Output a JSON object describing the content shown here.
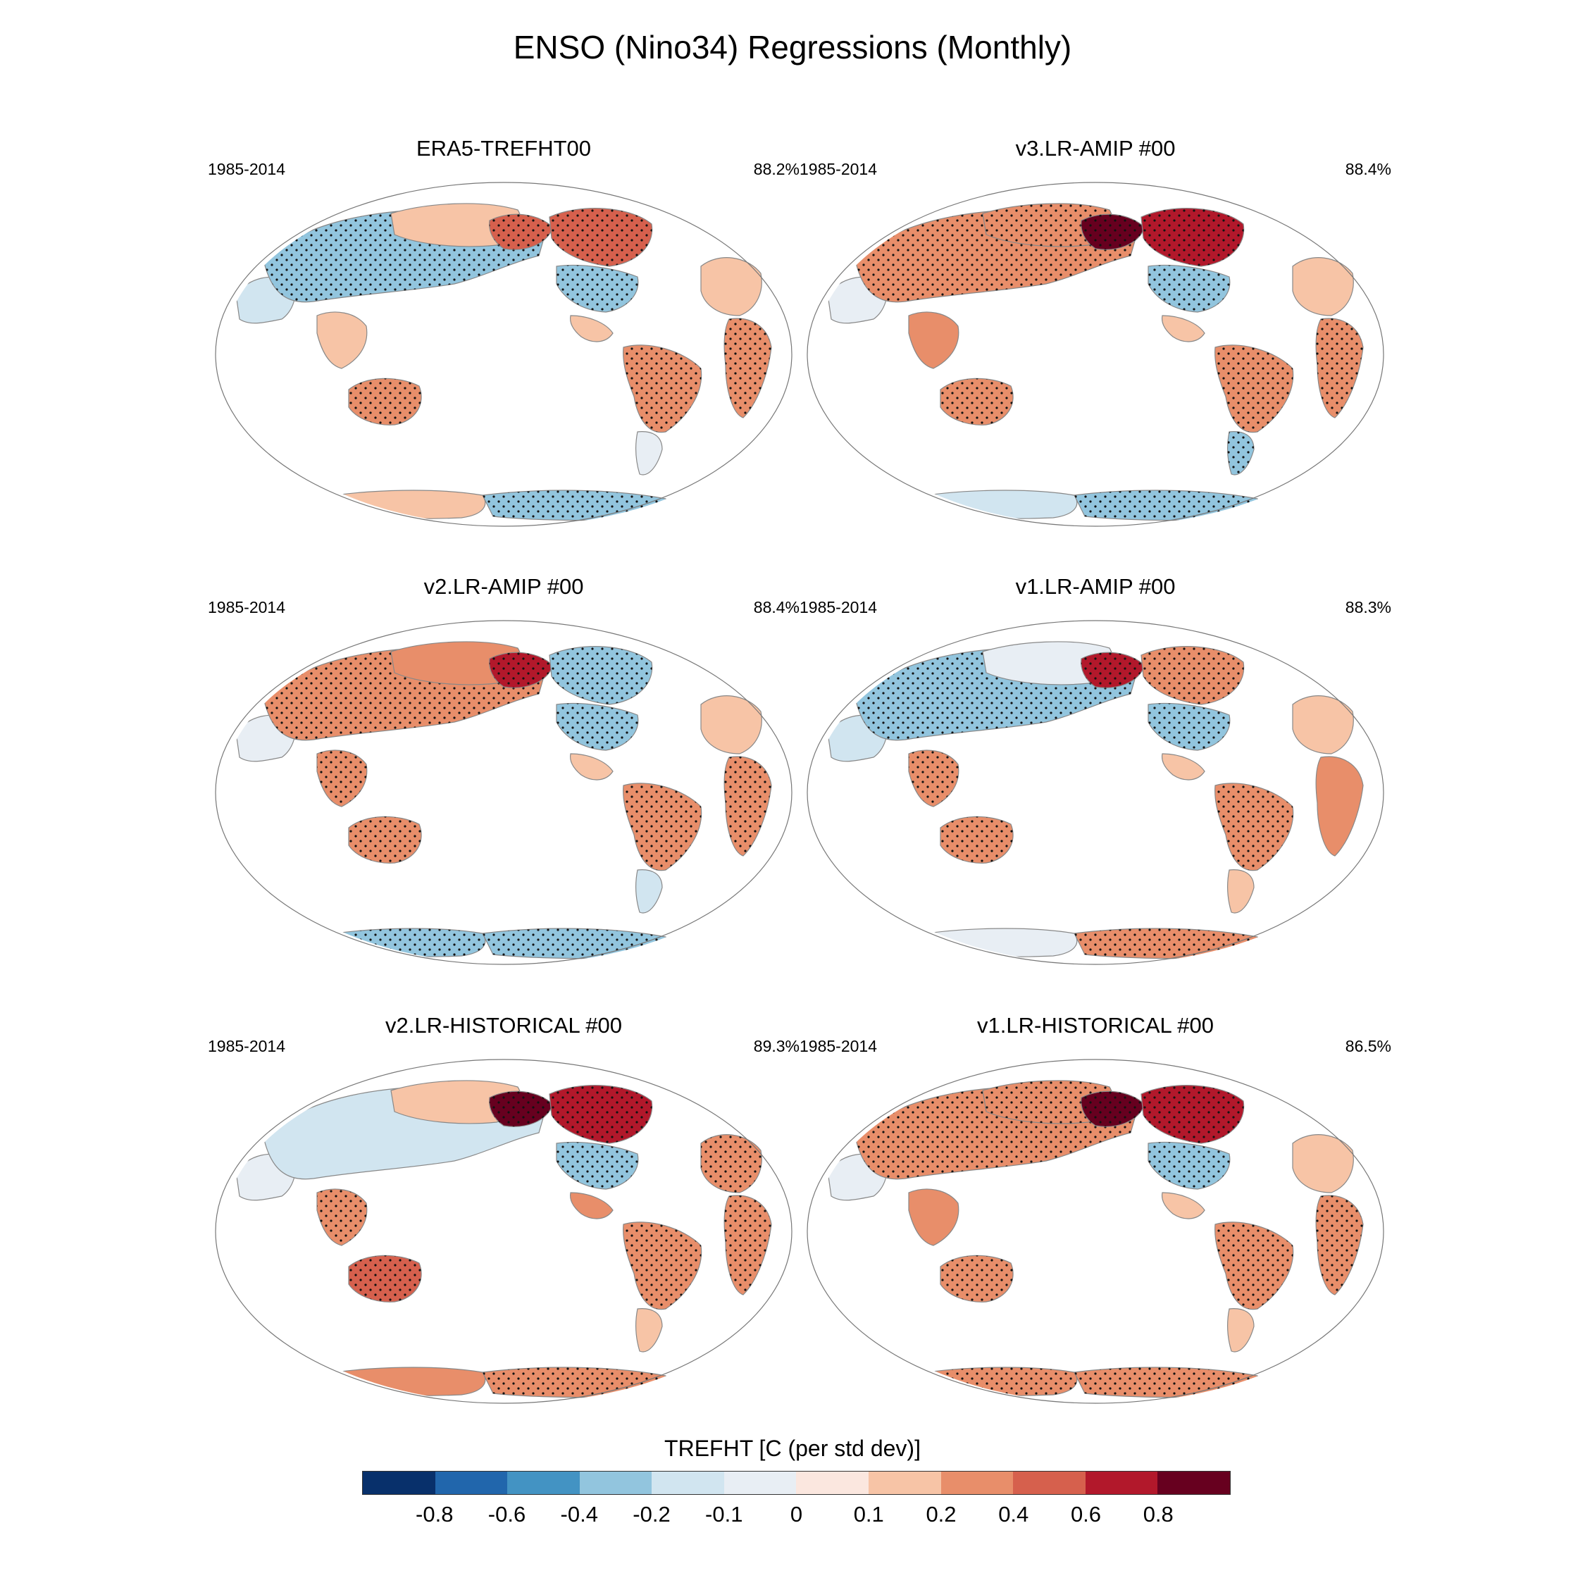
{
  "title": "ENSO (Nino34) Regressions (Monthly)",
  "panels": [
    {
      "title": "ERA5-TREFHT00",
      "period": "1985-2014",
      "pct": "88.2%",
      "anomalies": {
        "eurasia_n": -0.3,
        "europe": -0.2,
        "siberia_e": 0.1,
        "alaska": 0.5,
        "canada": 0.4,
        "usa": -0.4,
        "mexico": 0.1,
        "south_america": 0.3,
        "patagonia": -0.1,
        "africa_n": 0.1,
        "africa_s": 0.3,
        "australia": 0.3,
        "se_asia": 0.1,
        "antarctica_w": 0.1,
        "antarctica_e": -0.4
      }
    },
    {
      "title": "v3.LR-AMIP  #00",
      "period": "1985-2014",
      "pct": "88.4%",
      "anomalies": {
        "eurasia_n": 0.3,
        "europe": -0.1,
        "siberia_e": 0.3,
        "alaska": 0.8,
        "canada": 0.6,
        "usa": -0.3,
        "mexico": 0.1,
        "south_america": 0.3,
        "patagonia": -0.3,
        "africa_n": 0.1,
        "africa_s": 0.3,
        "australia": 0.3,
        "se_asia": 0.2,
        "antarctica_w": -0.2,
        "antarctica_e": -0.4
      }
    },
    {
      "title": "v2.LR-AMIP  #00",
      "period": "1985-2014",
      "pct": "88.4%",
      "anomalies": {
        "eurasia_n": 0.3,
        "europe": -0.1,
        "siberia_e": 0.2,
        "alaska": 0.6,
        "canada": -0.3,
        "usa": -0.4,
        "mexico": 0.1,
        "south_america": 0.3,
        "patagonia": -0.2,
        "africa_n": 0.1,
        "africa_s": 0.3,
        "australia": 0.3,
        "se_asia": 0.3,
        "antarctica_w": -0.4,
        "antarctica_e": -0.3
      }
    },
    {
      "title": "v1.LR-AMIP  #00",
      "period": "1985-2014",
      "pct": "88.3%",
      "anomalies": {
        "eurasia_n": -0.3,
        "europe": -0.2,
        "siberia_e": -0.1,
        "alaska": 0.6,
        "canada": 0.3,
        "usa": -0.4,
        "mexico": 0.1,
        "south_america": 0.3,
        "patagonia": 0.1,
        "africa_n": 0.1,
        "africa_s": 0.2,
        "australia": 0.3,
        "se_asia": 0.3,
        "antarctica_w": -0.1,
        "antarctica_e": 0.3
      }
    },
    {
      "title": "v2.LR-HISTORICAL  #00",
      "period": "1985-2014",
      "pct": "89.3%",
      "anomalies": {
        "eurasia_n": -0.2,
        "europe": -0.1,
        "siberia_e": 0.1,
        "alaska": 0.8,
        "canada": 0.6,
        "usa": -0.4,
        "mexico": 0.2,
        "south_america": 0.3,
        "patagonia": 0.1,
        "africa_n": 0.3,
        "africa_s": 0.3,
        "australia": 0.4,
        "se_asia": 0.3,
        "antarctica_w": 0.2,
        "antarctica_e": 0.3
      }
    },
    {
      "title": "v1.LR-HISTORICAL  #00",
      "period": "1985-2014",
      "pct": "86.5%",
      "anomalies": {
        "eurasia_n": 0.3,
        "europe": -0.1,
        "siberia_e": 0.3,
        "alaska": 0.8,
        "canada": 0.6,
        "usa": -0.3,
        "mexico": 0.1,
        "south_america": 0.3,
        "patagonia": 0.1,
        "africa_n": 0.1,
        "africa_s": 0.3,
        "australia": 0.3,
        "se_asia": 0.2,
        "antarctica_w": 0.3,
        "antarctica_e": 0.3
      }
    }
  ],
  "colorbar": {
    "title": "TREFHT [C (per std dev)]",
    "colors": [
      "#08306b",
      "#2166ac",
      "#4393c3",
      "#92c5de",
      "#d1e5f0",
      "#e8eef4",
      "#fbe7df",
      "#f7c4a6",
      "#e88e6a",
      "#d6604d",
      "#b2182b",
      "#67001f"
    ],
    "labels": [
      "-0.8",
      "-0.6",
      "-0.4",
      "-0.2",
      "-0.1",
      "0",
      "0.1",
      "0.2",
      "0.4",
      "0.6",
      "0.8"
    ],
    "levels": [
      -0.8,
      -0.6,
      -0.4,
      -0.2,
      -0.1,
      0,
      0.1,
      0.2,
      0.4,
      0.6,
      0.8
    ]
  }
}
